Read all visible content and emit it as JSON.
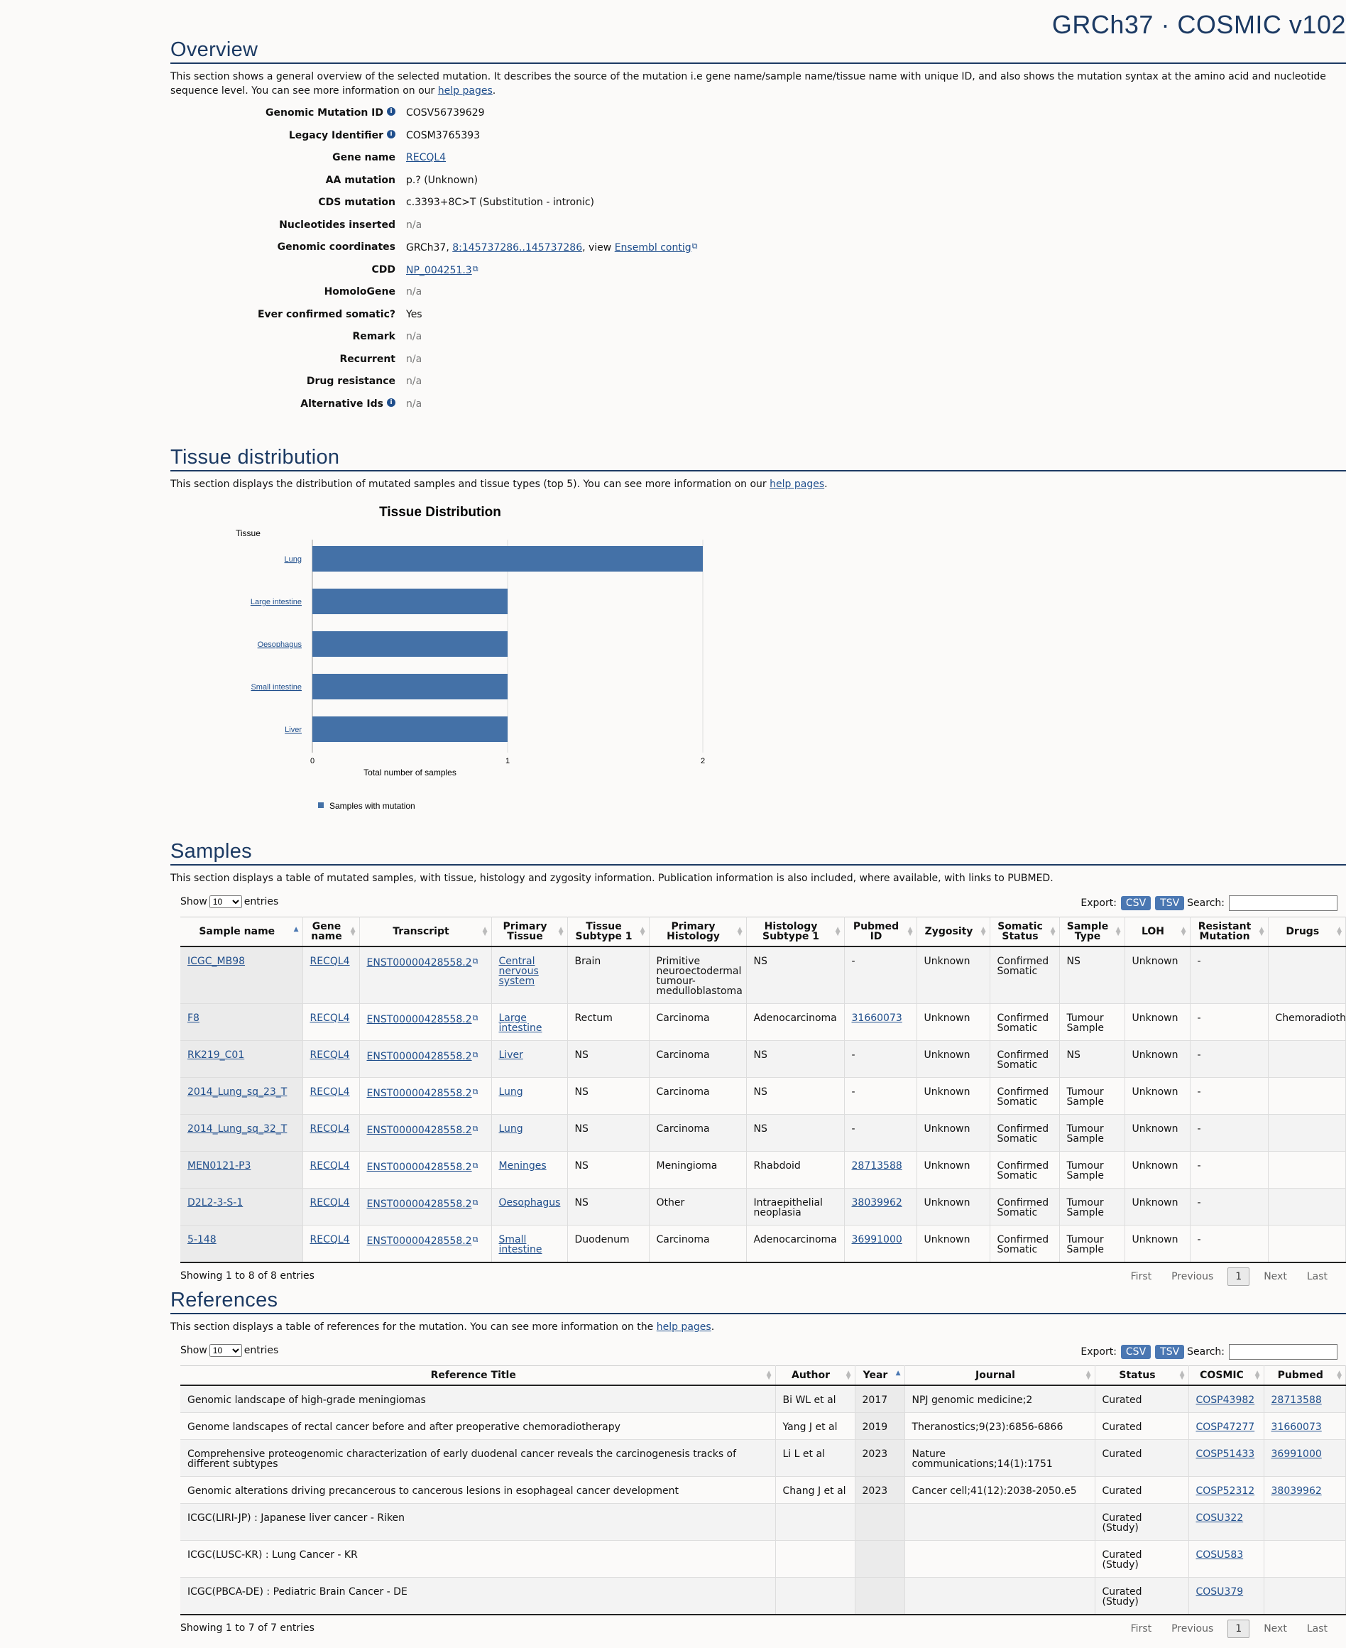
{
  "brand": "GRCh37 · COSMIC v102",
  "overview": {
    "title": "Overview",
    "desc_before": "This section shows a general overview of the selected mutation. It describes the source of the mutation i.e gene name/sample name/tissue name with unique ID, and also shows the mutation syntax at the amino acid and nucleotide sequence level. You can see more information on our ",
    "desc_link": "help pages",
    "desc_after": ".",
    "rows": [
      {
        "label": "Genomic Mutation ID",
        "value": "COSV56739629",
        "info": true
      },
      {
        "label": "Legacy Identifier",
        "value": "COSM3765393",
        "info": true
      },
      {
        "label": "Gene name",
        "value": "RECQL4"
      },
      {
        "label": "AA mutation",
        "value": "p.? (Unknown)"
      },
      {
        "label": "CDS mutation",
        "value": "c.3393+8C>T (Substitution - intronic)"
      },
      {
        "label": "Nucleotides inserted",
        "value": "n/a"
      },
      {
        "label": "Genomic coordinates",
        "prefix": "GRCh37, ",
        "link": "8:145737286..145737286",
        "mid": ", view ",
        "link2": "Ensembl contig"
      },
      {
        "label": "CDD",
        "value": "NP_004251.3"
      },
      {
        "label": "HomoloGene",
        "value": "n/a"
      },
      {
        "label": "Ever confirmed somatic?",
        "value": "Yes"
      },
      {
        "label": "Remark",
        "value": "n/a"
      },
      {
        "label": "Recurrent",
        "value": "n/a"
      },
      {
        "label": "Drug resistance",
        "value": "n/a"
      },
      {
        "label": "Alternative Ids",
        "value": "n/a",
        "info": true
      }
    ]
  },
  "tissue": {
    "title": "Tissue distribution",
    "desc_before": "This section displays the distribution of mutated samples and tissue types (top 5). You can see more information on our ",
    "desc_link": "help pages",
    "desc_after": "."
  },
  "chart_data": {
    "type": "bar",
    "orientation": "horizontal",
    "title": "Tissue Distribution",
    "ylabel": "Tissue",
    "xlabel": "Total number of samples",
    "categories": [
      "Lung",
      "Large intestine",
      "Oesophagus",
      "Small intestine",
      "Liver"
    ],
    "series": [
      {
        "name": "Samples with mutation",
        "values": [
          2,
          1,
          1,
          1,
          1
        ]
      }
    ],
    "xlim": [
      0,
      2
    ],
    "xticks": [
      "0",
      "1",
      "2"
    ],
    "grid": true,
    "legend": "bottom-left",
    "color": "#4471a7"
  },
  "samples": {
    "title": "Samples",
    "desc": "This section displays a table of mutated samples, with tissue, histology and zygosity information. Publication information is also included, where available, with links to PUBMED.",
    "show": "Show",
    "entries": "entries",
    "page_len": "10",
    "export": "Export:",
    "csv": "CSV",
    "tsv": "TSV",
    "search": "Search:",
    "columns": [
      "Sample name",
      "Gene name",
      "Transcript",
      "Primary Tissue",
      "Tissue Subtype 1",
      "Primary Histology",
      "Histology Subtype 1",
      "Pubmed ID",
      "Zygosity",
      "Somatic Status",
      "Sample Type",
      "LOH",
      "Resistant Mutation",
      "Drugs"
    ],
    "rows": [
      [
        "ICGC_MB98",
        "RECQL4",
        "ENST00000428558.2",
        "Central nervous system",
        "Brain",
        "Primitive neuroectodermal tumour-medulloblastoma",
        "NS",
        "-",
        "Unknown",
        "Confirmed Somatic",
        "NS",
        "Unknown",
        "-",
        ""
      ],
      [
        "F8",
        "RECQL4",
        "ENST00000428558.2",
        "Large intestine",
        "Rectum",
        "Carcinoma",
        "Adenocarcinoma",
        "31660073",
        "Unknown",
        "Confirmed Somatic",
        "Tumour Sample",
        "Unknown",
        "-",
        "Chemoradioth"
      ],
      [
        "RK219_C01",
        "RECQL4",
        "ENST00000428558.2",
        "Liver",
        "NS",
        "Carcinoma",
        "NS",
        "-",
        "Unknown",
        "Confirmed Somatic",
        "NS",
        "Unknown",
        "-",
        ""
      ],
      [
        "2014_Lung_sq_23_T",
        "RECQL4",
        "ENST00000428558.2",
        "Lung",
        "NS",
        "Carcinoma",
        "NS",
        "-",
        "Unknown",
        "Confirmed Somatic",
        "Tumour Sample",
        "Unknown",
        "-",
        ""
      ],
      [
        "2014_Lung_sq_32_T",
        "RECQL4",
        "ENST00000428558.2",
        "Lung",
        "NS",
        "Carcinoma",
        "NS",
        "-",
        "Unknown",
        "Confirmed Somatic",
        "Tumour Sample",
        "Unknown",
        "-",
        ""
      ],
      [
        "MEN0121-P3",
        "RECQL4",
        "ENST00000428558.2",
        "Meninges",
        "NS",
        "Meningioma",
        "Rhabdoid",
        "28713588",
        "Unknown",
        "Confirmed Somatic",
        "Tumour Sample",
        "Unknown",
        "-",
        ""
      ],
      [
        "D2L2-3-S-1",
        "RECQL4",
        "ENST00000428558.2",
        "Oesophagus",
        "NS",
        "Other",
        "Intraepithelial neoplasia",
        "38039962",
        "Unknown",
        "Confirmed Somatic",
        "Tumour Sample",
        "Unknown",
        "-",
        ""
      ],
      [
        "5-148",
        "RECQL4",
        "ENST00000428558.2",
        "Small intestine",
        "Duodenum",
        "Carcinoma",
        "Adenocarcinoma",
        "36991000",
        "Unknown",
        "Confirmed Somatic",
        "Tumour Sample",
        "Unknown",
        "-",
        ""
      ]
    ],
    "info": "Showing 1 to 8 of 8 entries",
    "first": "First",
    "previous": "Previous",
    "page": "1",
    "next": "Next",
    "last": "Last"
  },
  "references": {
    "title": "References",
    "desc_before": "This section displays a table of references for the mutation. You can see more information on the ",
    "desc_link": "help pages",
    "desc_after": ".",
    "show": "Show",
    "entries": "entries",
    "page_len": "10",
    "export": "Export:",
    "csv": "CSV",
    "tsv": "TSV",
    "search": "Search:",
    "columns": [
      "Reference Title",
      "Author",
      "Year",
      "Journal",
      "Status",
      "COSMIC",
      "Pubmed"
    ],
    "rows": [
      [
        "Genomic landscape of high-grade meningiomas",
        "Bi WL et al",
        "2017",
        "NPJ genomic medicine;2",
        "Curated",
        "COSP43982",
        "28713588"
      ],
      [
        "Genome landscapes of rectal cancer before and after preoperative chemoradiotherapy",
        "Yang J et al",
        "2019",
        "Theranostics;9(23):6856-6866",
        "Curated",
        "COSP47277",
        "31660073"
      ],
      [
        "Comprehensive proteogenomic characterization of early duodenal cancer reveals the carcinogenesis tracks of different subtypes",
        "Li L et al",
        "2023",
        "Nature communications;14(1):1751",
        "Curated",
        "COSP51433",
        "36991000"
      ],
      [
        "Genomic alterations driving precancerous to cancerous lesions in esophageal cancer development",
        "Chang J et al",
        "2023",
        "Cancer cell;41(12):2038-2050.e5",
        "Curated",
        "COSP52312",
        "38039962"
      ],
      [
        "ICGC(LIRI-JP) : Japanese liver cancer - Riken",
        "",
        "",
        "",
        "Curated (Study)",
        "COSU322",
        ""
      ],
      [
        "ICGC(LUSC-KR) : Lung Cancer - KR",
        "",
        "",
        "",
        "Curated (Study)",
        "COSU583",
        ""
      ],
      [
        "ICGC(PBCA-DE) : Pediatric Brain Cancer - DE",
        "",
        "",
        "",
        "Curated (Study)",
        "COSU379",
        ""
      ]
    ],
    "info": "Showing 1 to 7 of 7 entries",
    "first": "First",
    "previous": "Previous",
    "page": "1",
    "next": "Next",
    "last": "Last"
  }
}
